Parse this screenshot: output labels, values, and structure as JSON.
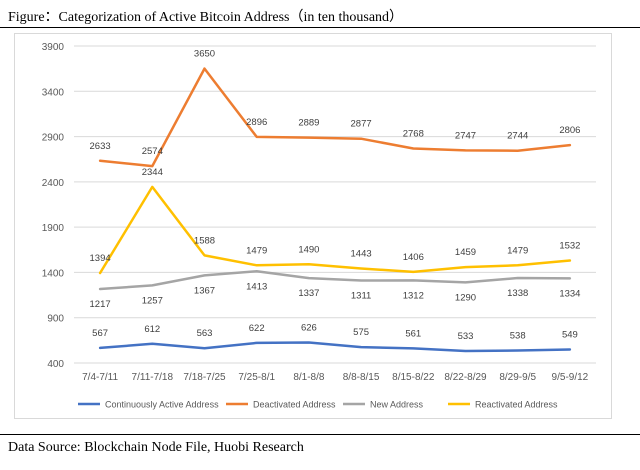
{
  "figure_title": "Figure：Categorization of Active Bitcoin Address（in ten thousand）",
  "data_source": "Data Source: Blockchain Node File, Huobi Research",
  "chart_data": {
    "type": "line",
    "title": "",
    "xlabel": "",
    "ylabel": "",
    "categories": [
      "7/4-7/11",
      "7/11-7/18",
      "7/18-7/25",
      "7/25-8/1",
      "8/1-8/8",
      "8/8-8/15",
      "8/15-8/22",
      "8/22-8/29",
      "8/29-9/5",
      "9/5-9/12"
    ],
    "ylim": [
      400,
      3900
    ],
    "yticks": [
      400,
      900,
      1400,
      1900,
      2400,
      2900,
      3400,
      3900
    ],
    "grid": true,
    "legend_position": "bottom",
    "series": [
      {
        "name": "Continuously Active Address",
        "color": "#4472c4",
        "values": [
          567,
          612,
          563,
          622,
          626,
          575,
          561,
          533,
          538,
          549
        ]
      },
      {
        "name": "Deactivated Address",
        "color": "#ed7d31",
        "values": [
          2633,
          2574,
          3650,
          2896,
          2889,
          2877,
          2768,
          2747,
          2744,
          2806
        ]
      },
      {
        "name": "New Address",
        "color": "#a5a5a5",
        "values": [
          1217,
          1257,
          1367,
          1413,
          1337,
          1311,
          1312,
          1290,
          1338,
          1334
        ]
      },
      {
        "name": "Reactivated Address",
        "color": "#ffc000",
        "values": [
          1394,
          2344,
          1588,
          1479,
          1490,
          1443,
          1406,
          1459,
          1479,
          1532
        ]
      }
    ]
  }
}
